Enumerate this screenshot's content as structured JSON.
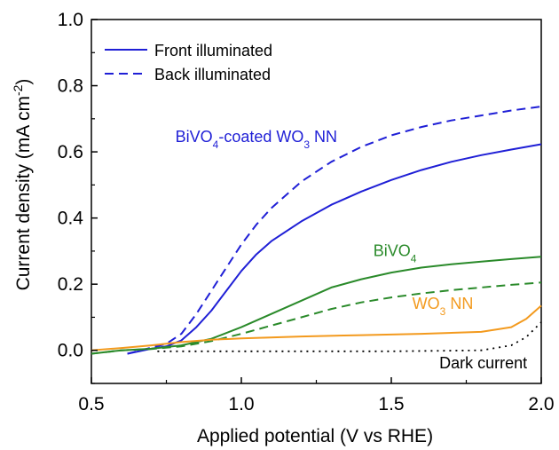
{
  "chart_data": {
    "type": "line",
    "xlabel": "Applied potential (V vs RHE)",
    "ylabel": "Current density (mA cm",
    "ylabel_sup": "-2",
    "ylabel_end": ")",
    "xlim": [
      0.5,
      2.0
    ],
    "ylim": [
      -0.1,
      1.0
    ],
    "x_ticks": [
      0.5,
      1.0,
      1.5,
      2.0
    ],
    "x_tick_labels": [
      "0.5",
      "1.0",
      "1.5",
      "2.0"
    ],
    "y_ticks": [
      0.0,
      0.2,
      0.4,
      0.6,
      0.8,
      1.0
    ],
    "y_tick_labels": [
      "0.0",
      "0.2",
      "0.4",
      "0.6",
      "0.8",
      "1.0"
    ],
    "grid": false,
    "legend": {
      "position": "top-left",
      "entries": [
        {
          "label": "Front illuminated",
          "dash": "solid",
          "color": "#1f1fd6"
        },
        {
          "label": "Back illuminated",
          "dash": "dashed",
          "color": "#1f1fd6"
        }
      ]
    },
    "annotations": [
      {
        "id": "bivo4-wo3",
        "base": "BiVO",
        "sub1": "4",
        "mid": "-coated WO",
        "sub2": "3",
        "end": " NN",
        "color": "#1f1fd6",
        "x": 0.78,
        "y": 0.63
      },
      {
        "id": "bivo4",
        "base": "BiVO",
        "sub1": "4",
        "mid": "",
        "sub2": "",
        "end": "",
        "color": "#2a8a2a",
        "x": 1.44,
        "y": 0.285
      },
      {
        "id": "wo3",
        "base": "WO",
        "sub1": "3",
        "mid": " NN",
        "sub2": "",
        "end": "",
        "color": "#f39a1e",
        "x": 1.57,
        "y": 0.125
      },
      {
        "id": "dark",
        "base": "Dark current",
        "sub1": "",
        "mid": "",
        "sub2": "",
        "end": "",
        "color": "#000000",
        "x": 1.66,
        "y": -0.055
      }
    ],
    "series": [
      {
        "id": "bivo4-wo3-front",
        "color": "#1f1fd6",
        "dash": "solid",
        "width": 2,
        "x": [
          0.62,
          0.7,
          0.75,
          0.8,
          0.85,
          0.9,
          0.95,
          1.0,
          1.05,
          1.1,
          1.2,
          1.3,
          1.4,
          1.5,
          1.6,
          1.7,
          1.8,
          1.9,
          2.0
        ],
        "y": [
          -0.01,
          0.005,
          0.012,
          0.03,
          0.07,
          0.12,
          0.18,
          0.24,
          0.29,
          0.33,
          0.39,
          0.44,
          0.48,
          0.515,
          0.545,
          0.57,
          0.59,
          0.607,
          0.623
        ]
      },
      {
        "id": "bivo4-wo3-back",
        "color": "#1f1fd6",
        "dash": "dashed",
        "width": 2,
        "x": [
          0.62,
          0.7,
          0.75,
          0.8,
          0.85,
          0.9,
          0.95,
          1.0,
          1.05,
          1.1,
          1.2,
          1.3,
          1.4,
          1.5,
          1.6,
          1.7,
          1.8,
          1.9,
          2.0
        ],
        "y": [
          -0.01,
          0.008,
          0.02,
          0.05,
          0.11,
          0.18,
          0.25,
          0.32,
          0.38,
          0.43,
          0.51,
          0.57,
          0.615,
          0.65,
          0.675,
          0.695,
          0.71,
          0.725,
          0.737
        ]
      },
      {
        "id": "bivo4-front",
        "color": "#2a8a2a",
        "dash": "solid",
        "width": 2,
        "x": [
          0.5,
          0.6,
          0.7,
          0.8,
          0.9,
          1.0,
          1.1,
          1.2,
          1.3,
          1.4,
          1.5,
          1.6,
          1.7,
          1.8,
          1.9,
          2.0
        ],
        "y": [
          -0.01,
          0.0,
          0.005,
          0.015,
          0.035,
          0.07,
          0.11,
          0.15,
          0.19,
          0.215,
          0.235,
          0.25,
          0.26,
          0.268,
          0.276,
          0.283
        ]
      },
      {
        "id": "bivo4-back",
        "color": "#2a8a2a",
        "dash": "dashed",
        "width": 2,
        "x": [
          0.5,
          0.6,
          0.7,
          0.8,
          0.9,
          1.0,
          1.1,
          1.2,
          1.3,
          1.4,
          1.5,
          1.6,
          1.7,
          1.8,
          1.9,
          2.0
        ],
        "y": [
          -0.01,
          0.0,
          0.004,
          0.012,
          0.028,
          0.05,
          0.075,
          0.1,
          0.125,
          0.145,
          0.16,
          0.172,
          0.182,
          0.19,
          0.198,
          0.205
        ]
      },
      {
        "id": "wo3-front",
        "color": "#f39a1e",
        "dash": "solid",
        "width": 2,
        "x": [
          0.5,
          0.6,
          0.7,
          0.8,
          0.9,
          1.0,
          1.2,
          1.4,
          1.6,
          1.8,
          1.9,
          1.95,
          2.0
        ],
        "y": [
          0.0,
          0.007,
          0.015,
          0.025,
          0.032,
          0.036,
          0.042,
          0.046,
          0.05,
          0.056,
          0.07,
          0.095,
          0.135
        ]
      },
      {
        "id": "dark-current",
        "color": "#000000",
        "dash": "dotted",
        "width": 1.8,
        "x": [
          0.72,
          0.9,
          1.2,
          1.5,
          1.8,
          1.9,
          1.95,
          2.0
        ],
        "y": [
          -0.003,
          -0.003,
          -0.003,
          -0.003,
          0.0,
          0.015,
          0.04,
          0.085
        ]
      }
    ]
  }
}
